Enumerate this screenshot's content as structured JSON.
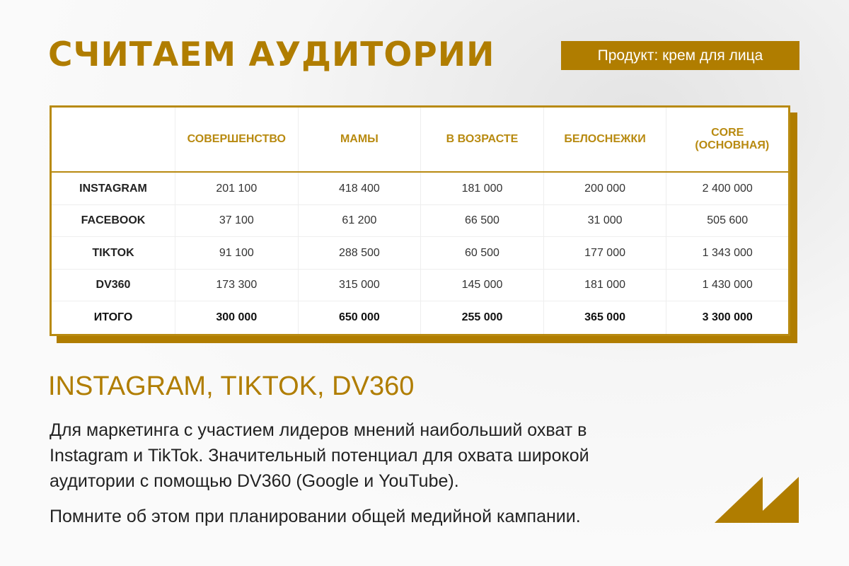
{
  "title": "СЧИТАЕМ АУДИТОРИИ",
  "product_badge": "Продукт: крем для лица",
  "table": {
    "columns": [
      "СОВЕРШЕНСТВО",
      "МАМЫ",
      "В ВОЗРАСТЕ",
      "БЕЛОСНЕЖКИ",
      "CORE (ОСНОВНАЯ)"
    ],
    "rows": [
      {
        "label": "INSTAGRAM",
        "values": [
          "201 100",
          "418 400",
          "181 000",
          "200 000",
          "2 400 000"
        ]
      },
      {
        "label": "FACEBOOK",
        "values": [
          "37 100",
          "61 200",
          "66 500",
          "31 000",
          "505 600"
        ]
      },
      {
        "label": "TIKTOK",
        "values": [
          "91 100",
          "288 500",
          "60 500",
          "177 000",
          "1 343 000"
        ]
      },
      {
        "label": "DV360",
        "values": [
          "173 300",
          "315 000",
          "145 000",
          "181 000",
          "1 430 000"
        ]
      },
      {
        "label": "ИТОГО",
        "values": [
          "300 000",
          "650 000",
          "255 000",
          "365 000",
          "3 300 000"
        ]
      }
    ]
  },
  "subtitle": "INSTAGRAM, TIKTOK, DV360",
  "paragraph1": "Для маркетинга с участием лидеров мнений наибольший охват в Instagram и TikTok. Значительный потенциал для охвата широкой аудитории с помощью DV360 (Google и YouTube).",
  "paragraph2": "Помните об этом при планировании общей медийной кампании.",
  "colors": {
    "accent": "#b07d00"
  },
  "logo_icon": "double-triangle-logo"
}
